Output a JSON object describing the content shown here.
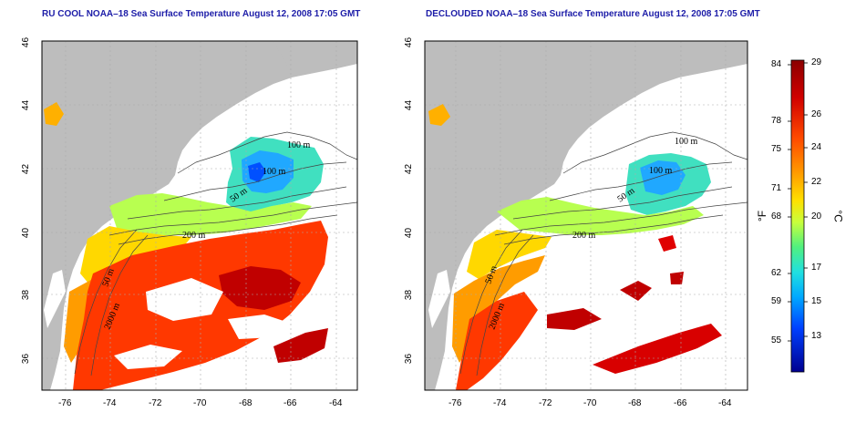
{
  "panels": [
    {
      "title": "RU COOL NOAA–18 Sea Surface Temperature August 12, 2008 17:05 GMT",
      "x_ticks": [
        "-76",
        "-74",
        "-72",
        "-70",
        "-68",
        "-66",
        "-64"
      ],
      "y_ticks": [
        "46",
        "44",
        "42",
        "40",
        "38",
        "36"
      ],
      "contour_labels": [
        "100 m",
        "100 m",
        "50 m",
        "200 m",
        "50 m",
        "2000 m"
      ]
    },
    {
      "title": "DECLOUDED NOAA–18 Sea Surface Temperature August 12, 2008 17:05 GMT",
      "x_ticks": [
        "-76",
        "-74",
        "-72",
        "-70",
        "-68",
        "-66",
        "-64"
      ],
      "y_ticks": [
        "46",
        "44",
        "42",
        "40",
        "38",
        "36"
      ],
      "contour_labels": [
        "100 m",
        "100 m",
        "50 m",
        "200 m",
        "50 m",
        "2000 m"
      ]
    }
  ],
  "colorbar": {
    "fahrenheit_ticks": [
      "84",
      "78",
      "75",
      "71",
      "68",
      "62",
      "59",
      "55"
    ],
    "celsius_ticks": [
      "29",
      "26",
      "24",
      "22",
      "20",
      "17",
      "15",
      "13"
    ],
    "fahrenheit_unit": "°F",
    "celsius_unit": "°C",
    "colors": [
      "#8b0000",
      "#e00000",
      "#ff4000",
      "#ff8000",
      "#ffc000",
      "#ffff40",
      "#a0ff40",
      "#40ff80",
      "#20e0e0",
      "#00c0ff",
      "#0060ff",
      "#0000c0",
      "#000080"
    ]
  },
  "colors": {
    "land": "#bdbdbd",
    "title": "#1d1da8",
    "grid": "#aaaaaa"
  }
}
